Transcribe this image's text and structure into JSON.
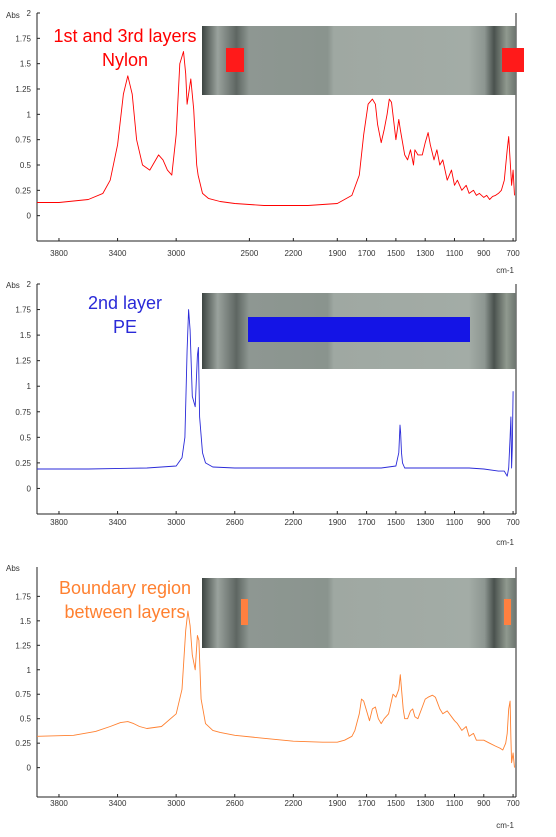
{
  "chart_data": [
    {
      "type": "line",
      "title": "1st and 3rd layers\nNylon",
      "ylabel": "Abs",
      "xlabel": "cm-1",
      "color": "#ff0000",
      "x_reversed": true,
      "xlim": [
        3950,
        680
      ],
      "ylim": [
        -0.25,
        2.0
      ],
      "xticks": [
        3800,
        3400,
        3000,
        2500,
        2200,
        1900,
        1700,
        1500,
        1300,
        1100,
        900,
        700
      ],
      "yticks": [
        0,
        0.25,
        0.5,
        0.75,
        1,
        1.25,
        1.5,
        1.75,
        2
      ],
      "ytick_labels": [
        "0",
        "0.25",
        "0.5",
        "0.75",
        "1",
        "1.25",
        "1.5",
        "1.75",
        "2"
      ],
      "inset": {
        "name": "microscope-image-nylon",
        "marker": "two-squares",
        "marker_color": "#ff1a1a"
      },
      "series": [
        {
          "x": [
            3950,
            3800,
            3600,
            3500,
            3450,
            3400,
            3360,
            3330,
            3300,
            3270,
            3230,
            3180,
            3120,
            3090,
            3060,
            3030,
            3000,
            2975,
            2950,
            2935,
            2925,
            2900,
            2880,
            2860,
            2850,
            2820,
            2780,
            2700,
            2600,
            2500,
            2400,
            2300,
            2200,
            2100,
            2000,
            1900,
            1800,
            1750,
            1720,
            1690,
            1660,
            1640,
            1625,
            1600,
            1580,
            1560,
            1545,
            1530,
            1500,
            1480,
            1470,
            1440,
            1420,
            1400,
            1380,
            1370,
            1350,
            1320,
            1300,
            1280,
            1265,
            1240,
            1220,
            1200,
            1180,
            1150,
            1120,
            1100,
            1080,
            1050,
            1020,
            1000,
            970,
            950,
            930,
            900,
            880,
            860,
            840,
            820,
            800,
            780,
            760,
            740,
            730,
            720,
            710,
            700,
            690
          ],
          "y": [
            0.13,
            0.13,
            0.16,
            0.22,
            0.35,
            0.7,
            1.2,
            1.38,
            1.2,
            0.75,
            0.5,
            0.45,
            0.6,
            0.55,
            0.45,
            0.4,
            0.8,
            1.5,
            1.62,
            1.4,
            1.1,
            1.35,
            1.05,
            0.5,
            0.4,
            0.22,
            0.17,
            0.14,
            0.12,
            0.11,
            0.1,
            0.1,
            0.1,
            0.1,
            0.11,
            0.12,
            0.2,
            0.4,
            0.8,
            1.1,
            1.15,
            1.1,
            0.9,
            0.72,
            0.85,
            1.0,
            1.15,
            1.12,
            0.75,
            0.95,
            0.85,
            0.6,
            0.55,
            0.65,
            0.5,
            0.65,
            0.6,
            0.6,
            0.72,
            0.82,
            0.7,
            0.55,
            0.65,
            0.5,
            0.55,
            0.35,
            0.45,
            0.3,
            0.35,
            0.25,
            0.3,
            0.22,
            0.25,
            0.2,
            0.22,
            0.18,
            0.2,
            0.16,
            0.19,
            0.2,
            0.22,
            0.25,
            0.35,
            0.65,
            0.78,
            0.55,
            0.3,
            0.45,
            0.2
          ]
        }
      ]
    },
    {
      "type": "line",
      "title": "2nd layer\nPE",
      "ylabel": "Abs",
      "xlabel": "cm-1",
      "color": "#2a2ad8",
      "x_reversed": true,
      "xlim": [
        3950,
        680
      ],
      "ylim": [
        -0.25,
        2.0
      ],
      "xticks": [
        3800,
        3400,
        3000,
        2600,
        2200,
        1900,
        1700,
        1500,
        1300,
        1100,
        900,
        700
      ],
      "yticks": [
        0,
        0.25,
        0.5,
        0.75,
        1,
        1.25,
        1.5,
        1.75,
        2
      ],
      "ytick_labels": [
        "0",
        "0.25",
        "0.5",
        "0.75",
        "1",
        "1.25",
        "1.5",
        "1.75",
        "2"
      ],
      "inset": {
        "name": "microscope-image-pe",
        "marker": "band",
        "marker_color": "#1414e6"
      },
      "series": [
        {
          "x": [
            3950,
            3600,
            3200,
            3000,
            2960,
            2940,
            2925,
            2915,
            2905,
            2890,
            2870,
            2855,
            2848,
            2840,
            2820,
            2800,
            2750,
            2600,
            2200,
            1800,
            1600,
            1500,
            1480,
            1472,
            1468,
            1462,
            1455,
            1440,
            1400,
            1200,
            1000,
            900,
            800,
            760,
            740,
            730,
            720,
            715,
            710,
            705,
            700
          ],
          "y": [
            0.19,
            0.19,
            0.2,
            0.22,
            0.3,
            0.5,
            1.35,
            1.75,
            1.55,
            0.9,
            0.8,
            1.3,
            1.38,
            0.7,
            0.35,
            0.25,
            0.21,
            0.2,
            0.2,
            0.2,
            0.2,
            0.22,
            0.35,
            0.62,
            0.55,
            0.35,
            0.25,
            0.2,
            0.2,
            0.2,
            0.2,
            0.19,
            0.17,
            0.17,
            0.12,
            0.2,
            0.5,
            0.7,
            0.2,
            0.4,
            0.95
          ]
        }
      ]
    },
    {
      "type": "line",
      "title": "Boundary region\nbetween layers",
      "ylabel": "Abs",
      "xlabel": "cm-1",
      "color": "#ff8030",
      "x_reversed": true,
      "xlim": [
        3950,
        680
      ],
      "ylim": [
        -0.3,
        2.05
      ],
      "xticks": [
        3800,
        3400,
        3000,
        2600,
        2200,
        1900,
        1700,
        1500,
        1300,
        1100,
        900,
        700
      ],
      "yticks": [
        0,
        0.25,
        0.5,
        0.75,
        1,
        1.25,
        1.5,
        1.75
      ],
      "ytick_labels": [
        "0",
        "0.25",
        "0.5",
        "0.75",
        "1",
        "1.25",
        "1.5",
        "1.75"
      ],
      "inset": {
        "name": "microscope-image-boundary",
        "marker": "two-bars",
        "marker_color": "#ff8040"
      },
      "series": [
        {
          "x": [
            3950,
            3700,
            3550,
            3450,
            3380,
            3330,
            3290,
            3250,
            3200,
            3100,
            3000,
            2960,
            2935,
            2920,
            2905,
            2890,
            2870,
            2855,
            2845,
            2830,
            2800,
            2750,
            2700,
            2600,
            2400,
            2200,
            2000,
            1900,
            1850,
            1800,
            1780,
            1750,
            1735,
            1720,
            1700,
            1680,
            1660,
            1640,
            1620,
            1600,
            1580,
            1550,
            1520,
            1500,
            1480,
            1470,
            1460,
            1450,
            1440,
            1420,
            1400,
            1385,
            1370,
            1350,
            1320,
            1300,
            1280,
            1250,
            1230,
            1200,
            1180,
            1150,
            1120,
            1100,
            1080,
            1050,
            1020,
            1000,
            970,
            950,
            900,
            860,
            820,
            790,
            770,
            750,
            740,
            730,
            720,
            715,
            710,
            700,
            690
          ],
          "y": [
            0.32,
            0.33,
            0.37,
            0.42,
            0.46,
            0.47,
            0.45,
            0.42,
            0.4,
            0.42,
            0.55,
            0.8,
            1.4,
            1.6,
            1.45,
            1.15,
            1.0,
            1.35,
            1.3,
            0.7,
            0.45,
            0.38,
            0.36,
            0.33,
            0.3,
            0.27,
            0.26,
            0.26,
            0.28,
            0.32,
            0.38,
            0.55,
            0.7,
            0.68,
            0.58,
            0.48,
            0.6,
            0.62,
            0.5,
            0.45,
            0.5,
            0.55,
            0.75,
            0.72,
            0.8,
            0.95,
            0.78,
            0.6,
            0.5,
            0.5,
            0.58,
            0.6,
            0.52,
            0.5,
            0.62,
            0.7,
            0.72,
            0.74,
            0.72,
            0.6,
            0.55,
            0.58,
            0.52,
            0.48,
            0.45,
            0.38,
            0.42,
            0.32,
            0.35,
            0.28,
            0.28,
            0.25,
            0.22,
            0.2,
            0.18,
            0.25,
            0.35,
            0.6,
            0.68,
            0.3,
            0.05,
            0.15,
            0.0
          ]
        }
      ]
    }
  ]
}
